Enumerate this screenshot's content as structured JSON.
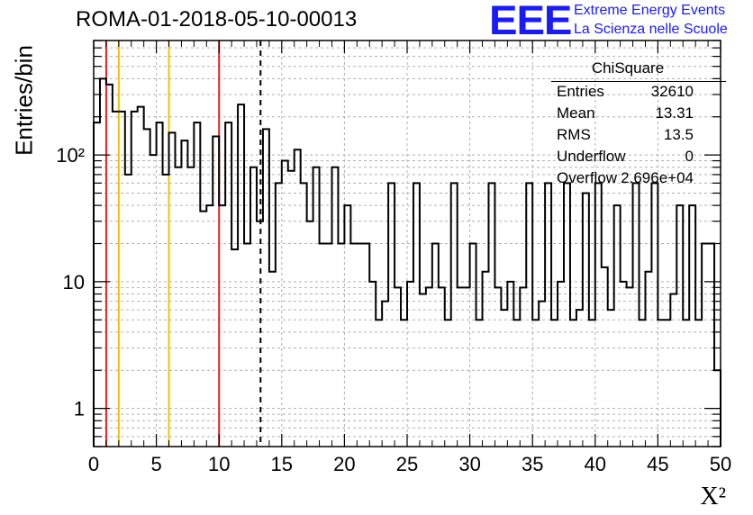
{
  "title": "ROMA-01-2018-05-10-00013",
  "logo": {
    "text": "EEE",
    "line1": "Extreme Energy Events",
    "line2": "La Scienza nelle Scuole",
    "color": "#1a1aff"
  },
  "stats": {
    "title": "ChiSquare",
    "rows": [
      {
        "name": "Entries",
        "value": "32610"
      },
      {
        "name": "Mean",
        "value": "13.31"
      },
      {
        "name": "RMS",
        "value": "13.5"
      },
      {
        "name": "Underflow",
        "value": "0"
      },
      {
        "name": "Overflow",
        "value": "2.696e+04"
      }
    ]
  },
  "chart_data": {
    "type": "histogram",
    "title": "ROMA-01-2018-05-10-00013",
    "xlabel": "X²",
    "ylabel": "Entries/bin",
    "xlim": [
      0,
      50
    ],
    "ylim": [
      0.5,
      800
    ],
    "yscale": "log",
    "grid": true,
    "bin_width": 0.5,
    "xticks": [
      "0",
      "5",
      "10",
      "15",
      "20",
      "25",
      "30",
      "35",
      "40",
      "45",
      "50"
    ],
    "yticks": [
      {
        "value": 1,
        "label": "1"
      },
      {
        "value": 10,
        "label": "10"
      },
      {
        "value": 100,
        "label": "10²"
      }
    ],
    "values": [
      180,
      400,
      360,
      220,
      220,
      70,
      220,
      240,
      160,
      100,
      180,
      70,
      150,
      80,
      130,
      80,
      180,
      36,
      40,
      140,
      40,
      180,
      18,
      250,
      20,
      80,
      30,
      160,
      12,
      60,
      90,
      75,
      110,
      60,
      30,
      80,
      20,
      20,
      80,
      20,
      40,
      20,
      20,
      20,
      10,
      5,
      7,
      60,
      9,
      5,
      10,
      60,
      8,
      9,
      20,
      9,
      5,
      60,
      9,
      9,
      20,
      5,
      12,
      60,
      9,
      6,
      10,
      5,
      9,
      60,
      5,
      7,
      60,
      5,
      10,
      60,
      5,
      6,
      50,
      5,
      60,
      13,
      6,
      40,
      10,
      9,
      60,
      5,
      12,
      60,
      5,
      5,
      8,
      40,
      5,
      40,
      5,
      20,
      20,
      2
    ],
    "reference_lines": [
      {
        "x": 1,
        "color": "#e8202a",
        "style": "solid"
      },
      {
        "x": 2,
        "color": "#f2c200",
        "style": "solid"
      },
      {
        "x": 6,
        "color": "#f2c200",
        "style": "solid"
      },
      {
        "x": 10,
        "color": "#e8202a",
        "style": "solid"
      },
      {
        "x": 13.31,
        "color": "#000000",
        "style": "dashed"
      }
    ]
  }
}
